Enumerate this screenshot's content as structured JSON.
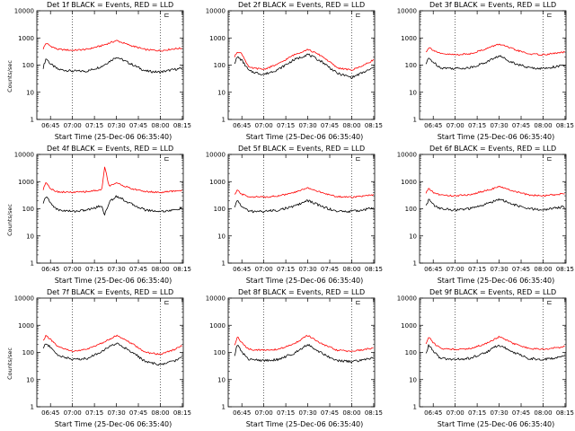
{
  "colors": {
    "events": "#000000",
    "lld": "#ff0000",
    "axis": "#000000",
    "bg": "#ffffff"
  },
  "shared": {
    "xlabel": "Start Time (25-Dec-06 06:35:40)",
    "ylabel": "Counts/sec",
    "x_ticks": [
      "06:45",
      "07:00",
      "07:15",
      "07:30",
      "07:45",
      "08:00",
      "08:15"
    ],
    "y_ticks": [
      "1",
      "10",
      "100",
      "1000",
      "10000"
    ],
    "marker": "⊏"
  },
  "chart_data": [
    {
      "type": "line",
      "title": "Det 1f BLACK = Events, RED = LLD",
      "xlabel": "Start Time (25-Dec-06 06:35:40)",
      "ylabel": "Counts/sec",
      "x": [
        "06:40",
        "06:42",
        "06:45",
        "06:50",
        "07:00",
        "07:10",
        "07:20",
        "07:30",
        "07:40",
        "07:50",
        "08:00",
        "08:10",
        "08:15"
      ],
      "ylim": [
        1,
        10000
      ],
      "yscale": "log",
      "series": [
        {
          "name": "Events",
          "values": [
            80,
            180,
            110,
            70,
            60,
            60,
            90,
            200,
            110,
            60,
            55,
            70,
            75
          ]
        },
        {
          "name": "LLD",
          "values": [
            400,
            650,
            500,
            380,
            350,
            380,
            520,
            800,
            520,
            370,
            340,
            400,
            420
          ]
        }
      ]
    },
    {
      "type": "line",
      "title": "Det 2f BLACK = Events, RED = LLD",
      "xlabel": "Start Time (25-Dec-06 06:35:40)",
      "ylabel": "Counts/sec",
      "x": [
        "06:40",
        "06:42",
        "06:45",
        "06:50",
        "07:00",
        "07:10",
        "07:20",
        "07:30",
        "07:40",
        "07:50",
        "08:00",
        "08:10",
        "08:15"
      ],
      "ylim": [
        1,
        10000
      ],
      "yscale": "log",
      "series": [
        {
          "name": "Events",
          "values": [
            120,
            200,
            150,
            60,
            45,
            70,
            150,
            250,
            130,
            50,
            35,
            60,
            80
          ]
        },
        {
          "name": "LLD",
          "values": [
            200,
            320,
            260,
            80,
            70,
            110,
            230,
            380,
            210,
            80,
            65,
            110,
            160
          ]
        }
      ]
    },
    {
      "type": "line",
      "title": "Det 3f BLACK = Events, RED = LLD",
      "xlabel": "Start Time (25-Dec-06 06:35:40)",
      "ylabel": "Counts/sec",
      "x": [
        "06:40",
        "06:42",
        "06:45",
        "06:50",
        "07:00",
        "07:10",
        "07:20",
        "07:30",
        "07:40",
        "07:50",
        "08:00",
        "08:10",
        "08:15"
      ],
      "ylim": [
        1,
        10000
      ],
      "yscale": "log",
      "series": [
        {
          "name": "Events",
          "values": [
            110,
            180,
            130,
            80,
            75,
            80,
            120,
            220,
            120,
            80,
            75,
            90,
            95
          ]
        },
        {
          "name": "LLD",
          "values": [
            300,
            450,
            360,
            260,
            240,
            260,
            380,
            600,
            380,
            260,
            240,
            280,
            300
          ]
        }
      ]
    },
    {
      "type": "line",
      "title": "Det 4f BLACK = Events, RED = LLD",
      "xlabel": "Start Time (25-Dec-06 06:35:40)",
      "ylabel": "Counts/sec",
      "x": [
        "06:40",
        "06:42",
        "06:45",
        "06:50",
        "07:00",
        "07:10",
        "07:20",
        "07:22",
        "07:25",
        "07:30",
        "07:40",
        "07:50",
        "08:00",
        "08:10",
        "08:15"
      ],
      "ylim": [
        1,
        10000
      ],
      "yscale": "log",
      "series": [
        {
          "name": "Events",
          "values": [
            150,
            300,
            160,
            90,
            80,
            90,
            130,
            60,
            170,
            300,
            150,
            90,
            80,
            90,
            110
          ]
        },
        {
          "name": "LLD",
          "values": [
            500,
            1000,
            550,
            420,
            400,
            430,
            500,
            3500,
            700,
            900,
            550,
            430,
            400,
            450,
            480
          ]
        }
      ]
    },
    {
      "type": "line",
      "title": "Det 5f BLACK = Events, RED = LLD",
      "xlabel": "Start Time (25-Dec-06 06:35:40)",
      "ylabel": "Counts/sec",
      "x": [
        "06:40",
        "06:42",
        "06:45",
        "06:50",
        "07:00",
        "07:10",
        "07:20",
        "07:30",
        "07:40",
        "07:50",
        "08:00",
        "08:10",
        "08:15"
      ],
      "ylim": [
        1,
        10000
      ],
      "yscale": "log",
      "series": [
        {
          "name": "Events",
          "values": [
            110,
            210,
            120,
            80,
            80,
            90,
            120,
            200,
            120,
            80,
            80,
            95,
            110
          ]
        },
        {
          "name": "LLD",
          "values": [
            320,
            480,
            340,
            280,
            270,
            300,
            380,
            600,
            380,
            280,
            270,
            300,
            320
          ]
        }
      ]
    },
    {
      "type": "line",
      "title": "Det 6f BLACK = Events, RED = LLD",
      "xlabel": "Start Time (25-Dec-06 06:35:40)",
      "ylabel": "Counts/sec",
      "x": [
        "06:40",
        "06:42",
        "06:45",
        "06:50",
        "07:00",
        "07:10",
        "07:20",
        "07:30",
        "07:40",
        "07:50",
        "08:00",
        "08:10",
        "08:15"
      ],
      "ylim": [
        1,
        10000
      ],
      "yscale": "log",
      "series": [
        {
          "name": "Events",
          "values": [
            130,
            220,
            140,
            100,
            90,
            100,
            140,
            230,
            140,
            100,
            90,
            110,
            120
          ]
        },
        {
          "name": "LLD",
          "values": [
            380,
            550,
            400,
            320,
            300,
            330,
            450,
            650,
            450,
            320,
            300,
            340,
            360
          ]
        }
      ]
    },
    {
      "type": "line",
      "title": "Det 7f BLACK = Events, RED = LLD",
      "xlabel": "Start Time (25-Dec-06 06:35:40)",
      "ylabel": "Counts/sec",
      "x": [
        "06:40",
        "06:42",
        "06:45",
        "06:50",
        "07:00",
        "07:10",
        "07:20",
        "07:30",
        "07:40",
        "07:50",
        "08:00",
        "08:10",
        "08:15"
      ],
      "ylim": [
        1,
        10000
      ],
      "yscale": "log",
      "series": [
        {
          "name": "Events",
          "values": [
            140,
            220,
            150,
            80,
            55,
            60,
            110,
            220,
            110,
            45,
            35,
            50,
            70
          ]
        },
        {
          "name": "LLD",
          "values": [
            280,
            420,
            300,
            160,
            110,
            130,
            220,
            420,
            220,
            100,
            85,
            130,
            180
          ]
        }
      ]
    },
    {
      "type": "line",
      "title": "Det 8f BLACK = Events, RED = LLD",
      "xlabel": "Start Time (25-Dec-06 06:35:40)",
      "ylabel": "Counts/sec",
      "x": [
        "06:40",
        "06:42",
        "06:45",
        "06:50",
        "07:00",
        "07:10",
        "07:20",
        "07:30",
        "07:40",
        "07:50",
        "08:00",
        "08:10",
        "08:15"
      ],
      "ylim": [
        1,
        10000
      ],
      "yscale": "log",
      "series": [
        {
          "name": "Events",
          "values": [
            80,
            200,
            100,
            55,
            50,
            55,
            90,
            200,
            90,
            50,
            45,
            55,
            65
          ]
        },
        {
          "name": "LLD",
          "values": [
            180,
            380,
            220,
            130,
            120,
            130,
            200,
            420,
            200,
            120,
            110,
            130,
            150
          ]
        }
      ]
    },
    {
      "type": "line",
      "title": "Det 9f BLACK = Events, RED = LLD",
      "xlabel": "Start Time (25-Dec-06 06:35:40)",
      "ylabel": "Counts/sec",
      "x": [
        "06:40",
        "06:42",
        "06:45",
        "06:50",
        "07:00",
        "07:10",
        "07:20",
        "07:30",
        "07:40",
        "07:50",
        "08:00",
        "08:10",
        "08:15"
      ],
      "ylim": [
        1,
        10000
      ],
      "yscale": "log",
      "series": [
        {
          "name": "Events",
          "values": [
            90,
            190,
            110,
            60,
            55,
            60,
            95,
            190,
            100,
            60,
            55,
            65,
            80
          ]
        },
        {
          "name": "LLD",
          "values": [
            200,
            380,
            230,
            140,
            130,
            140,
            200,
            380,
            210,
            140,
            130,
            150,
            170
          ]
        }
      ]
    }
  ]
}
